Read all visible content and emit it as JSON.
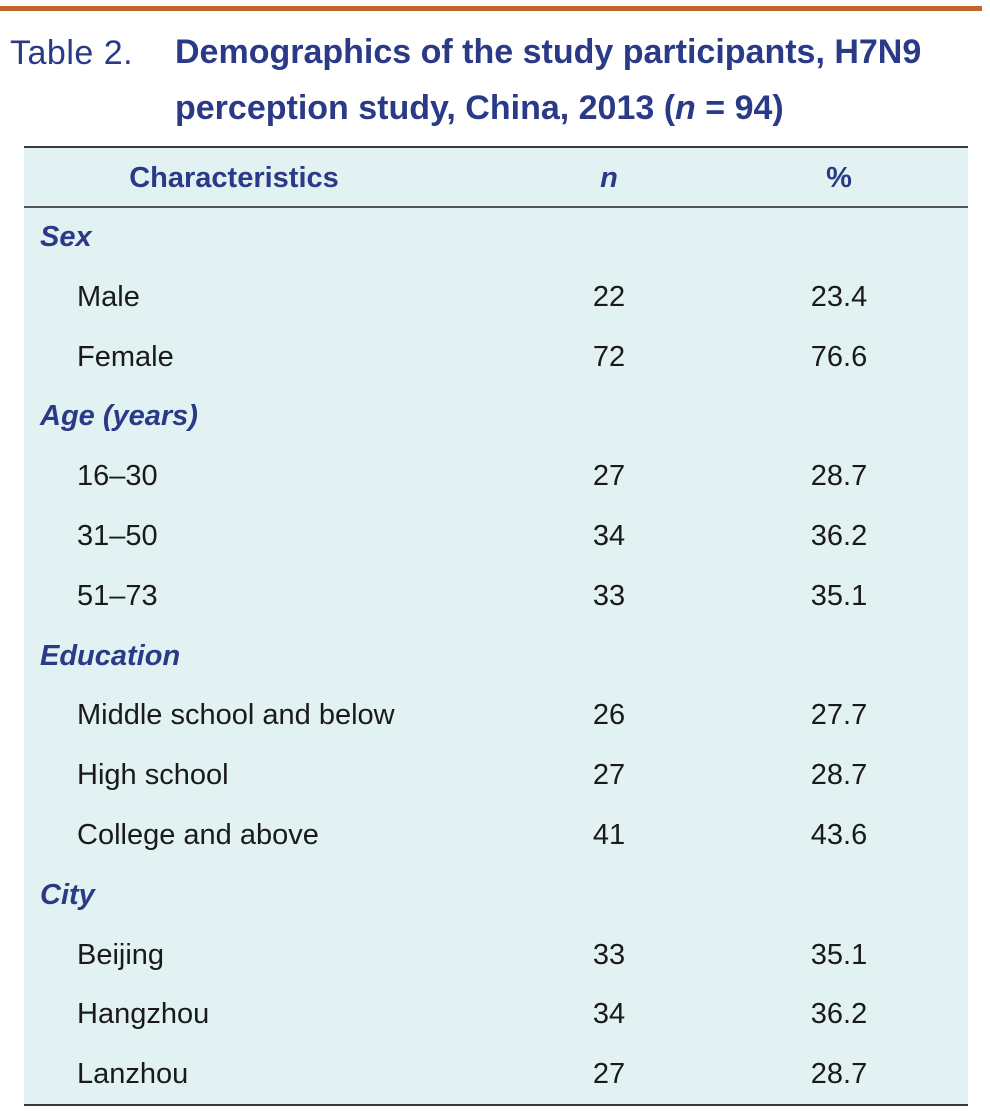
{
  "caption": {
    "label": "Table 2.",
    "title_line1": "Demographics of the study participants, H7N9",
    "title_line2_prefix": "perception study, China, 2013 (",
    "title_n": "n",
    "title_eq": " = 94)"
  },
  "table": {
    "headers": [
      "Characteristics",
      "n",
      "%"
    ],
    "rows": [
      {
        "type": "section",
        "label": "Sex",
        "n": "",
        "pct": ""
      },
      {
        "type": "item",
        "label": "Male",
        "n": "22",
        "pct": "23.4"
      },
      {
        "type": "item",
        "label": "Female",
        "n": "72",
        "pct": "76.6"
      },
      {
        "type": "section",
        "label": "Age (years)",
        "n": "",
        "pct": ""
      },
      {
        "type": "item",
        "label": "16–30",
        "n": "27",
        "pct": "28.7"
      },
      {
        "type": "item",
        "label": "31–50",
        "n": "34",
        "pct": "36.2"
      },
      {
        "type": "item",
        "label": "51–73",
        "n": "33",
        "pct": "35.1"
      },
      {
        "type": "section",
        "label": "Education",
        "n": "",
        "pct": ""
      },
      {
        "type": "item",
        "label": "Middle school and below",
        "n": "26",
        "pct": "27.7"
      },
      {
        "type": "item",
        "label": "High school",
        "n": "27",
        "pct": "28.7"
      },
      {
        "type": "item",
        "label": "College and above",
        "n": "41",
        "pct": "43.6"
      },
      {
        "type": "section",
        "label": "City",
        "n": "",
        "pct": ""
      },
      {
        "type": "item",
        "label": "Beijing",
        "n": "33",
        "pct": "35.1"
      },
      {
        "type": "item",
        "label": "Hangzhou",
        "n": "34",
        "pct": "36.2"
      },
      {
        "type": "item",
        "label": "Lanzhou",
        "n": "27",
        "pct": "28.7"
      }
    ]
  },
  "colors": {
    "accent_rule": "#c0672a",
    "title_blue": "#2a3a86",
    "table_background": "#e2f1f1"
  }
}
